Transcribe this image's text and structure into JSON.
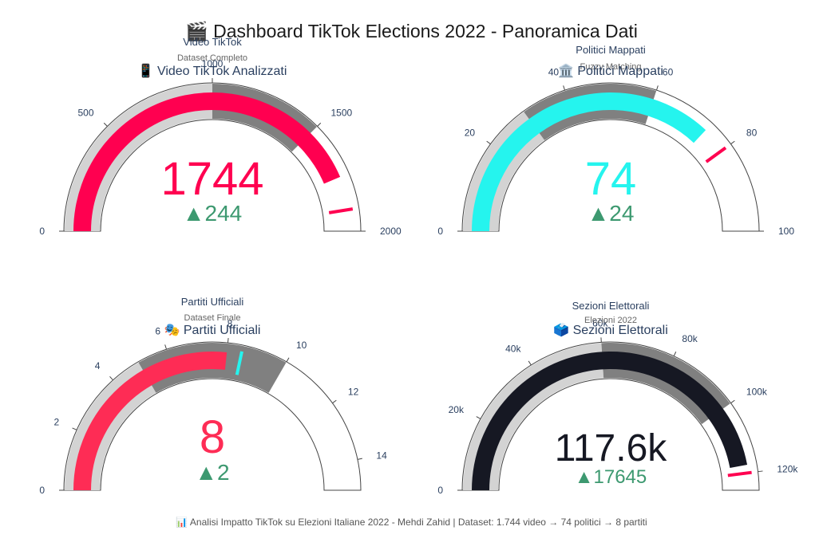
{
  "dashboard": {
    "title": "🎬 Dashboard TikTok Elections 2022 - Panoramica Dati",
    "footer": "📊 Analisi Impatto TikTok su Elezioni Italiane 2022 - Mehdi Zahid | Dataset: 1.744 video → 74 politici → 8 partiti"
  },
  "chart_data": [
    {
      "type": "gauge",
      "title": "📱 Video TikTok Analizzati",
      "overlay_title": "Video TikTok",
      "overlay_subtitle": "Dataset Completo",
      "value": 1744,
      "value_text": "1744",
      "delta_text": "▲244",
      "range": [
        0,
        2000
      ],
      "ticks": [
        0,
        500,
        1000,
        1500,
        2000
      ],
      "tick_labels": [
        "0",
        "500",
        "1000",
        "1500",
        "2000"
      ],
      "steps": [
        {
          "range": [
            0,
            1000
          ],
          "color": "#d3d3d3"
        },
        {
          "range": [
            1000,
            1500
          ],
          "color": "#808080"
        }
      ],
      "threshold": 1900,
      "bar_color": "#ff0050",
      "number_color": "#ff0050",
      "threshold_color": "#ff0050",
      "delta_color": "#3d9970"
    },
    {
      "type": "gauge",
      "title": "🏛️ Politici Mappati",
      "overlay_title": "Politici Mappati",
      "overlay_subtitle": "Fuzzy Matching",
      "value": 74,
      "value_text": "74",
      "delta_text": "▲24",
      "range": [
        0,
        100
      ],
      "ticks": [
        0,
        20,
        40,
        60,
        80,
        100
      ],
      "tick_labels": [
        "0",
        "20",
        "40",
        "60",
        "80",
        "100"
      ],
      "steps": [
        {
          "range": [
            0,
            30
          ],
          "color": "#d3d3d3"
        },
        {
          "range": [
            30,
            60
          ],
          "color": "#808080"
        }
      ],
      "threshold": 80,
      "bar_color": "#25f4ee",
      "number_color": "#25f4ee",
      "threshold_color": "#ff0050",
      "delta_color": "#3d9970"
    },
    {
      "type": "gauge",
      "title": "🎭 Partiti Ufficiali",
      "overlay_title": "Partiti Ufficiali",
      "overlay_subtitle": "Dataset Finale",
      "value": 8,
      "value_text": "8",
      "delta_text": "▲2",
      "range": [
        0,
        15
      ],
      "ticks": [
        0,
        2,
        4,
        6,
        8,
        10,
        12,
        14
      ],
      "tick_labels": [
        "0",
        "2",
        "4",
        "6",
        "8",
        "10",
        "12",
        "14"
      ],
      "steps": [
        {
          "range": [
            0,
            5
          ],
          "color": "#d3d3d3"
        },
        {
          "range": [
            5,
            10
          ],
          "color": "#808080"
        }
      ],
      "threshold": 8.5,
      "bar_color": "#fe2c55",
      "number_color": "#fe2c55",
      "threshold_color": "#25f4ee",
      "delta_color": "#3d9970"
    },
    {
      "type": "gauge",
      "title": "🗳️ Sezioni Elettorali",
      "overlay_title": "Sezioni Elettorali",
      "overlay_subtitle": "Elezioni 2022",
      "value": 117645,
      "value_text": "117.6k",
      "delta_text": "▲17645",
      "range": [
        0,
        125000
      ],
      "ticks": [
        0,
        20000,
        40000,
        60000,
        80000,
        100000,
        120000
      ],
      "tick_labels": [
        "0",
        "20k",
        "40k",
        "60k",
        "80k",
        "100k",
        "120k"
      ],
      "steps": [
        {
          "range": [
            0,
            60000
          ],
          "color": "#d3d3d3"
        },
        {
          "range": [
            60000,
            100000
          ],
          "color": "#808080"
        }
      ],
      "threshold": 120000,
      "bar_color": "#161823",
      "number_color": "#161823",
      "threshold_color": "#ff0050",
      "delta_color": "#3d9970"
    }
  ]
}
